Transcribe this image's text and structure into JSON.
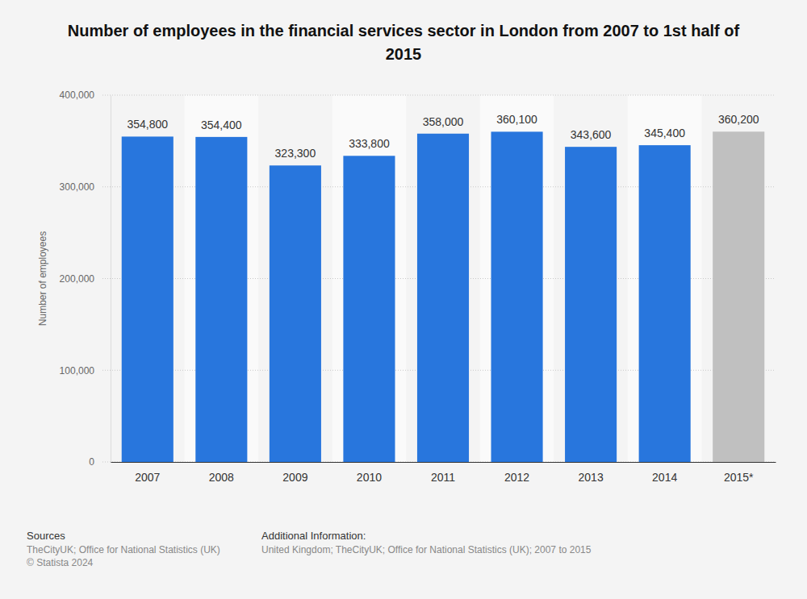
{
  "chart_data": {
    "type": "bar",
    "title": "Number of employees in the financial services sector in London from 2007 to 1st half of 2015",
    "y_label": "Number of employees",
    "categories": [
      "2007",
      "2008",
      "2009",
      "2010",
      "2011",
      "2012",
      "2013",
      "2014",
      "2015*"
    ],
    "values": [
      354800,
      354400,
      323300,
      333800,
      358000,
      360100,
      343600,
      345400,
      360200
    ],
    "value_labels": [
      "354,800",
      "354,400",
      "323,300",
      "333,800",
      "358,000",
      "360,100",
      "343,600",
      "345,400",
      "360,200"
    ],
    "colors": [
      "#2876dd",
      "#2876dd",
      "#2876dd",
      "#2876dd",
      "#2876dd",
      "#2876dd",
      "#2876dd",
      "#2876dd",
      "#c0c0c0"
    ],
    "ylim": [
      0,
      400000
    ],
    "yticks": [
      0,
      {
        "value": 100000,
        "label": "100,000"
      },
      {
        "value": 200000,
        "label": "200,000"
      },
      {
        "value": 300000,
        "label": "300,000"
      },
      {
        "value": 400000,
        "label": "400,000"
      }
    ],
    "grid": true,
    "data_labels": true,
    "annotations": [
      "Sources",
      "TheCityUK; Office for National Statistics (UK)",
      "© Statista 2024",
      "Additional Information:",
      "United Kingdom; TheCityUK; Office for National Statistics (UK); 2007 to 2015"
    ]
  }
}
